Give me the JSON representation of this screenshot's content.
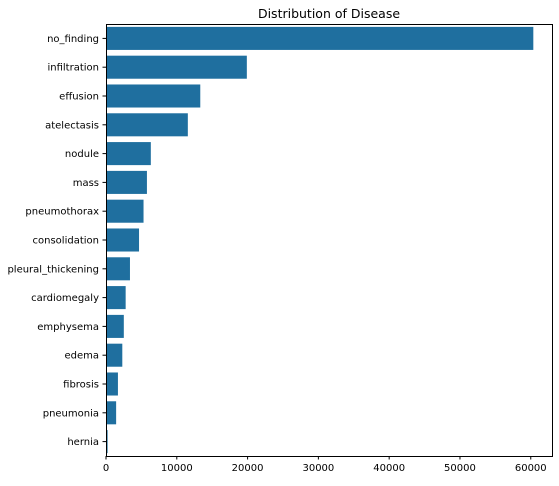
{
  "chart_data": {
    "type": "bar",
    "orientation": "horizontal",
    "title": "Distribution of Disease",
    "xlabel": "",
    "ylabel": "",
    "categories": [
      "no_finding",
      "infiltration",
      "effusion",
      "atelectasis",
      "nodule",
      "mass",
      "pneumothorax",
      "consolidation",
      "pleural_thickening",
      "cardiomegaly",
      "emphysema",
      "edema",
      "fibrosis",
      "pneumonia",
      "hernia"
    ],
    "values": [
      60361,
      19894,
      13317,
      11559,
      6331,
      5782,
      5302,
      4667,
      3385,
      2776,
      2516,
      2303,
      1686,
      1431,
      227
    ],
    "xlim": [
      0,
      63000
    ],
    "xticks": [
      0,
      10000,
      20000,
      30000,
      40000,
      50000,
      60000
    ],
    "grid": false,
    "legend": "none",
    "bar_color": "#1f6f9f"
  }
}
